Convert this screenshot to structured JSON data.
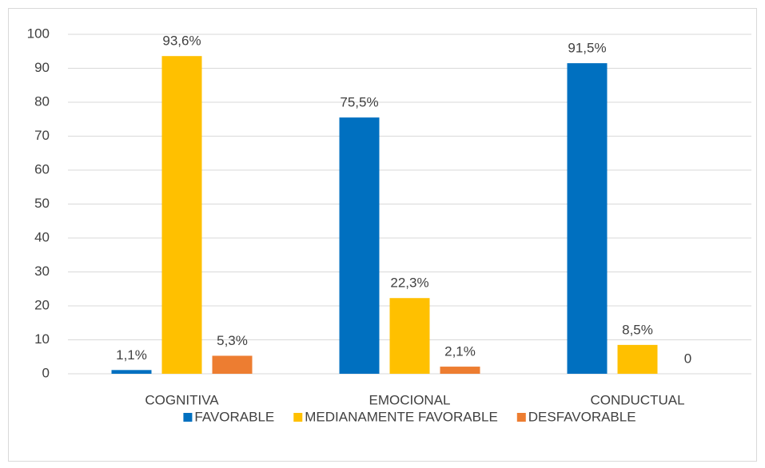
{
  "chart_data": {
    "type": "bar",
    "categories": [
      "COGNITIVA",
      "EMOCIONAL",
      "CONDUCTUAL"
    ],
    "series": [
      {
        "name": "FAVORABLE",
        "color": "#0070c0",
        "values": [
          1.1,
          75.5,
          91.5
        ],
        "value_labels": [
          "1,1%",
          "75,5%",
          "91,5%"
        ]
      },
      {
        "name": "MEDIANAMENTE FAVORABLE",
        "color": "#ffc000",
        "values": [
          93.6,
          22.3,
          8.5
        ],
        "value_labels": [
          "93,6%",
          "22,3%",
          "8,5%"
        ]
      },
      {
        "name": "DESFAVORABLE",
        "color": "#ed7d31",
        "values": [
          5.3,
          2.1,
          0
        ],
        "value_labels": [
          "5,3%",
          "2,1%",
          "0"
        ]
      }
    ],
    "ylim": [
      0,
      100
    ],
    "yticks": [
      0,
      10,
      20,
      30,
      40,
      50,
      60,
      70,
      80,
      90,
      100
    ],
    "grid": true,
    "legend": "bottom"
  }
}
